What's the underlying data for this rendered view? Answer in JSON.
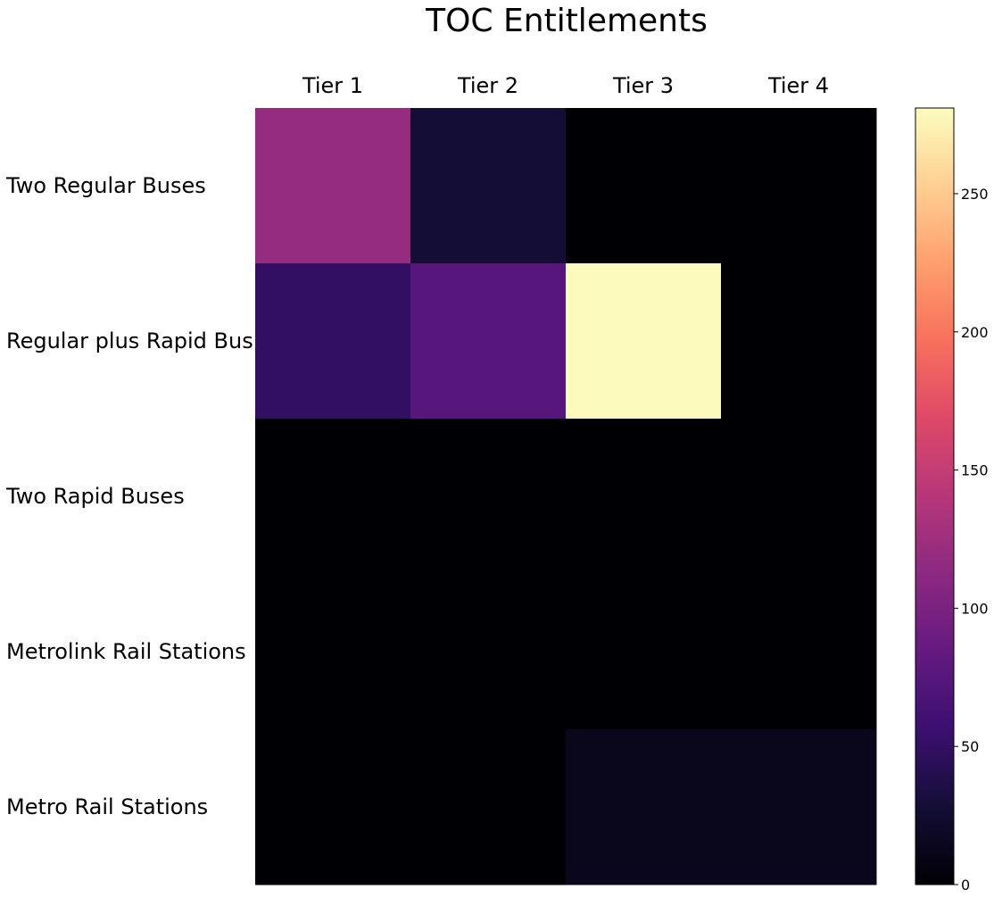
{
  "chart_data": {
    "type": "heatmap",
    "title": "TOC Entitlements",
    "columns": [
      "Tier 1",
      "Tier 2",
      "Tier 3",
      "Tier 4"
    ],
    "rows": [
      "Two Regular Buses",
      "Regular plus Rapid Bus",
      "Two Rapid Buses",
      "Metrolink Rail Stations",
      "Metro Rail Stations"
    ],
    "values": [
      [
        118,
        28,
        0,
        0
      ],
      [
        50,
        75,
        280,
        0
      ],
      [
        0,
        0,
        0,
        0
      ],
      [
        0,
        0,
        0,
        0
      ],
      [
        0,
        0,
        14,
        14
      ]
    ],
    "colorscale": "magma",
    "colorbar": {
      "min": 0,
      "max": 281,
      "ticks": [
        0,
        50,
        100,
        150,
        200,
        250
      ],
      "tick_labels": [
        "0",
        "50",
        "100",
        "150",
        "200",
        "250"
      ]
    },
    "column_labels_position": "top",
    "grid": false
  }
}
